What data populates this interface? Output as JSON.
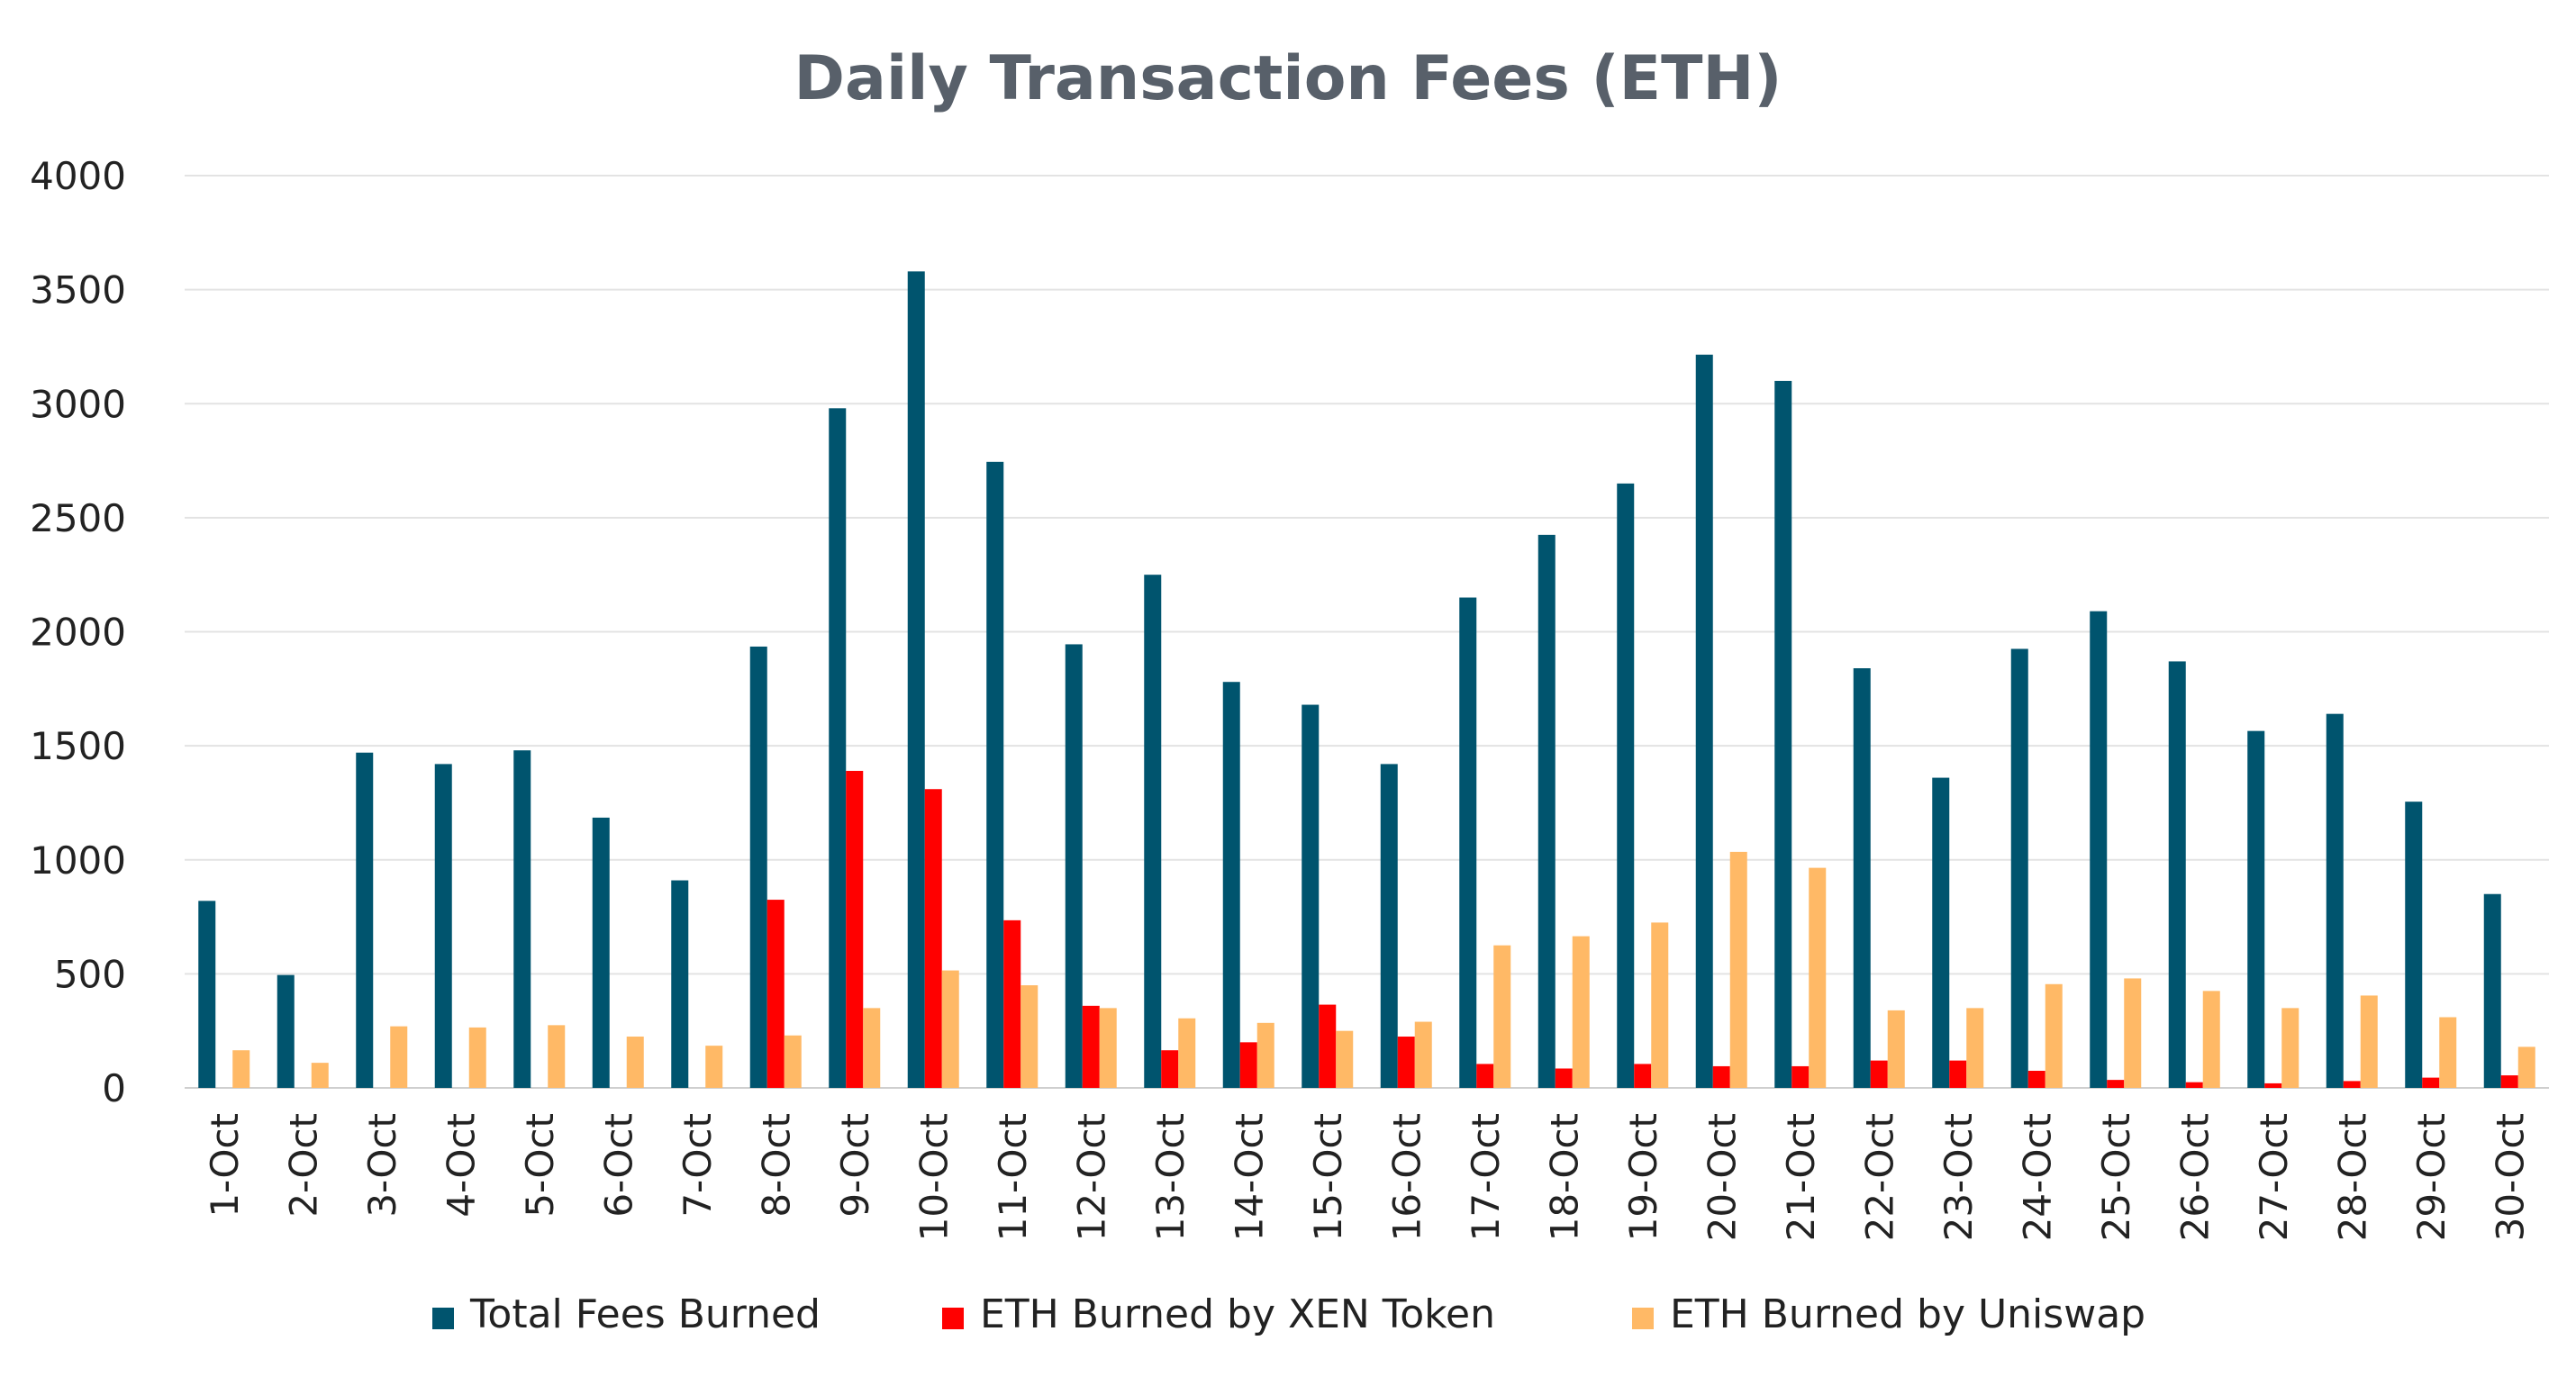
{
  "chart_data": {
    "type": "bar",
    "title": "Daily Transaction Fees (ETH)",
    "xlabel": "",
    "ylabel": "",
    "ylim": [
      0,
      4000
    ],
    "yticks": [
      0,
      500,
      1000,
      1500,
      2000,
      2500,
      3000,
      3500,
      4000
    ],
    "grid": true,
    "legend_position": "bottom",
    "categories": [
      "1-Oct",
      "2-Oct",
      "3-Oct",
      "4-Oct",
      "5-Oct",
      "6-Oct",
      "7-Oct",
      "8-Oct",
      "9-Oct",
      "10-Oct",
      "11-Oct",
      "12-Oct",
      "13-Oct",
      "14-Oct",
      "15-Oct",
      "16-Oct",
      "17-Oct",
      "18-Oct",
      "19-Oct",
      "20-Oct",
      "21-Oct",
      "22-Oct",
      "23-Oct",
      "24-Oct",
      "25-Oct",
      "26-Oct",
      "27-Oct",
      "28-Oct",
      "29-Oct",
      "30-Oct"
    ],
    "series": [
      {
        "name": "Total Fees Burned",
        "color": "#00546e",
        "values": [
          820,
          495,
          1470,
          1420,
          1480,
          1185,
          910,
          1935,
          2980,
          3580,
          2745,
          1945,
          2250,
          1780,
          1680,
          1420,
          2150,
          2425,
          2650,
          3215,
          3100,
          1840,
          1360,
          1925,
          2090,
          1870,
          1565,
          1640,
          1255,
          850
        ]
      },
      {
        "name": "ETH Burned by XEN Token",
        "color": "#ff0000",
        "values": [
          0,
          0,
          0,
          0,
          0,
          0,
          0,
          825,
          1390,
          1310,
          735,
          360,
          165,
          200,
          365,
          225,
          105,
          85,
          105,
          95,
          95,
          120,
          120,
          75,
          35,
          25,
          20,
          30,
          45,
          55
        ]
      },
      {
        "name": "ETH Burned by Uniswap",
        "color": "#ffb966",
        "values": [
          165,
          110,
          270,
          265,
          275,
          225,
          185,
          230,
          350,
          515,
          450,
          350,
          305,
          285,
          250,
          290,
          625,
          665,
          725,
          1035,
          965,
          340,
          350,
          455,
          480,
          425,
          350,
          405,
          310,
          180
        ]
      }
    ]
  }
}
